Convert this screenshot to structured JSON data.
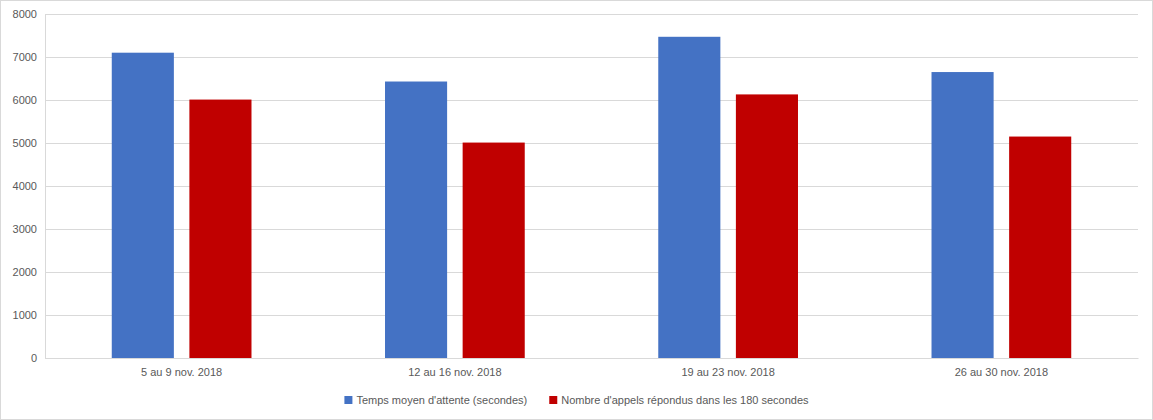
{
  "chart_data": {
    "type": "bar",
    "categories": [
      "5 au 9 nov. 2018",
      "12 au 16 nov. 2018",
      "19 au 23 nov. 2018",
      "26 au 30 nov. 2018"
    ],
    "series": [
      {
        "name": "Temps moyen d'attente (secondes)",
        "color": "#4472c4",
        "values": [
          7100,
          6430,
          7470,
          6650
        ]
      },
      {
        "name": "Nombre d'appels répondus dans les 180 secondes",
        "color": "#c00000",
        "values": [
          6010,
          5010,
          6130,
          5150
        ]
      }
    ],
    "ylim": [
      0,
      8000
    ],
    "yticks": [
      0,
      1000,
      2000,
      3000,
      4000,
      5000,
      6000,
      7000,
      8000
    ],
    "grid": true,
    "legend": "bottom"
  }
}
